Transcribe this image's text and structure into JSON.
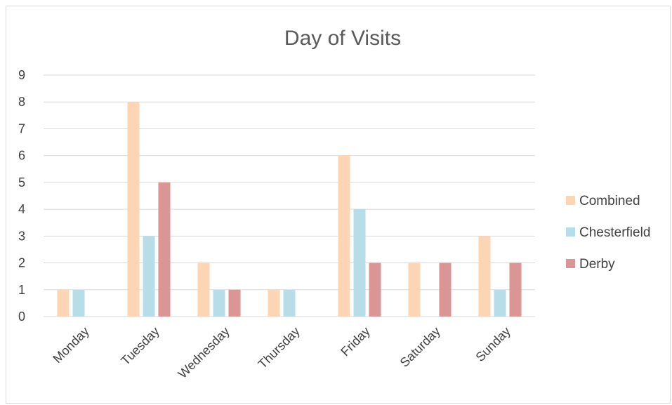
{
  "chart_data": {
    "type": "bar",
    "title": "Day of Visits",
    "xlabel": "",
    "ylabel": "",
    "categories": [
      "Monday",
      "Tuesday",
      "Wednesday",
      "Thursday",
      "Friday",
      "Saturday",
      "Sunday"
    ],
    "series": [
      {
        "name": "Combined",
        "color": "#fcd5b5",
        "values": [
          1,
          8,
          2,
          1,
          6,
          2,
          3
        ]
      },
      {
        "name": "Chesterfield",
        "color": "#b7dee8",
        "values": [
          1,
          3,
          1,
          1,
          4,
          0,
          1
        ]
      },
      {
        "name": "Derby",
        "color": "#d99694",
        "values": [
          0,
          5,
          1,
          0,
          2,
          2,
          2
        ]
      }
    ],
    "ylim": [
      0,
      9
    ],
    "yticks": [
      0,
      1,
      2,
      3,
      4,
      5,
      6,
      7,
      8,
      9
    ],
    "grid": true,
    "legend_position": "right"
  }
}
